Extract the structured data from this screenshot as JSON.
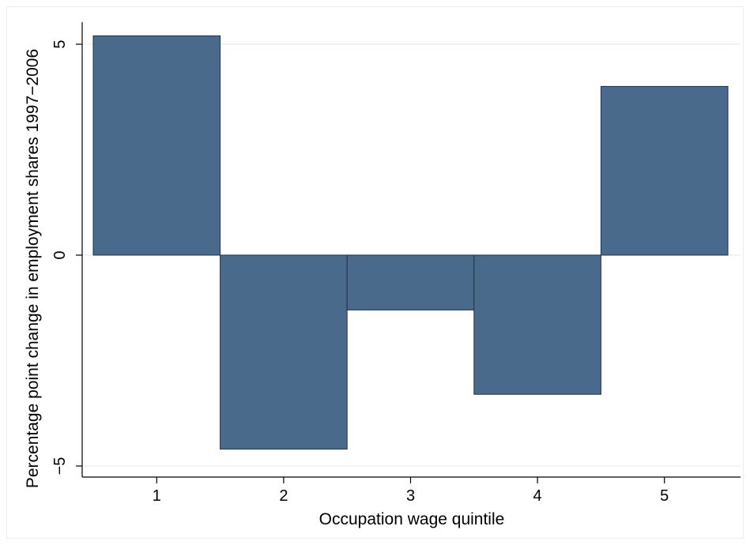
{
  "chart_data": {
    "type": "bar",
    "title": "",
    "xlabel": "Occupation wage quintile",
    "ylabel": "Percentage point change in employment shares 1997−2006",
    "categories": [
      "1",
      "2",
      "3",
      "4",
      "5"
    ],
    "values": [
      5.2,
      -4.6,
      -1.3,
      -3.3,
      4.0
    ],
    "ylim": [
      -5.2,
      5.4
    ],
    "yticks": [
      -5,
      0,
      5
    ],
    "ytick_labels": [
      "−5",
      "0",
      "5"
    ],
    "grid": true,
    "bar_color": "#4a6a8b",
    "bar_edge_color": "#1f3247",
    "grid_color": "#eaf2f3"
  }
}
